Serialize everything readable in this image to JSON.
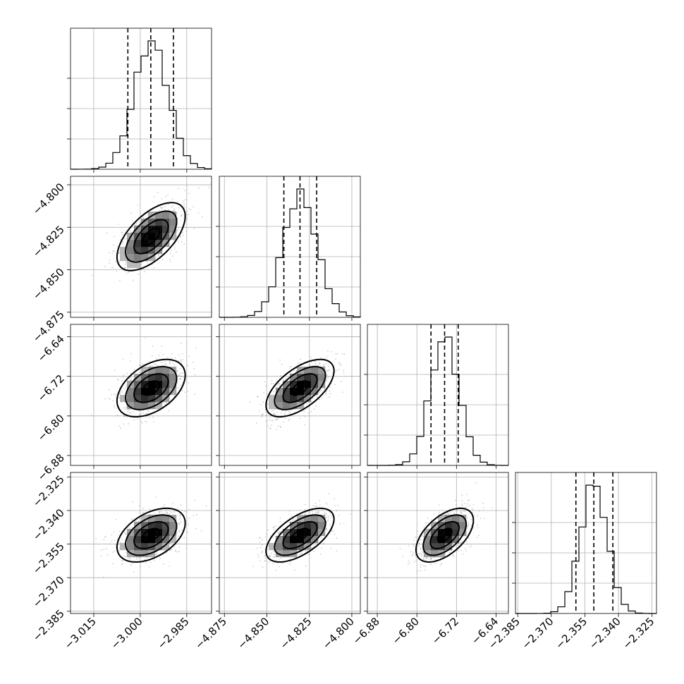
{
  "chart_data": {
    "type": "corner",
    "params": [
      {
        "mean": -2.9965,
        "std": 0.0055,
        "range": [
          -3.0225,
          -2.977
        ],
        "ticks": [
          -3.015,
          -3.0,
          -2.985
        ],
        "tick_labels": [
          "−3.015",
          "−3.000",
          "−2.985"
        ],
        "quantiles": [
          -3.004,
          -2.9966,
          -2.9893
        ]
      },
      {
        "mean": -4.8305,
        "std": 0.01,
        "range": [
          -4.878,
          -4.795
        ],
        "ticks": [
          -4.875,
          -4.85,
          -4.825,
          -4.8
        ],
        "tick_labels": [
          "−4.875",
          "−4.850",
          "−4.825",
          "−4.800"
        ],
        "quantiles": [
          -4.84,
          -4.8305,
          -4.8207
        ]
      },
      {
        "mean": -6.7438,
        "std": 0.029,
        "range": [
          -6.9,
          -6.615
        ],
        "ticks": [
          -6.88,
          -6.8,
          -6.72,
          -6.64
        ],
        "tick_labels": [
          "−6.88",
          "−6.80",
          "−6.72",
          "−6.64"
        ],
        "quantiles": [
          -6.7715,
          -6.744,
          -6.7165
        ]
      },
      {
        "mean": -2.351,
        "std": 0.006,
        "range": [
          -2.386,
          -2.323
        ],
        "ticks": [
          -2.385,
          -2.37,
          -2.355,
          -2.34,
          -2.325
        ],
        "tick_labels": [
          "−2.385",
          "−2.370",
          "−2.355",
          "−2.340",
          "−2.325"
        ],
        "quantiles": [
          -2.359,
          -2.351,
          -2.3425
        ]
      }
    ],
    "correlation": {
      "0-1": 0.6,
      "0-2": 0.45,
      "0-3": 0.45,
      "1-2": 0.6,
      "1-3": 0.6,
      "2-3": 0.55
    },
    "grid": true,
    "scatter_color": "#888888",
    "density_color": "#000000"
  }
}
